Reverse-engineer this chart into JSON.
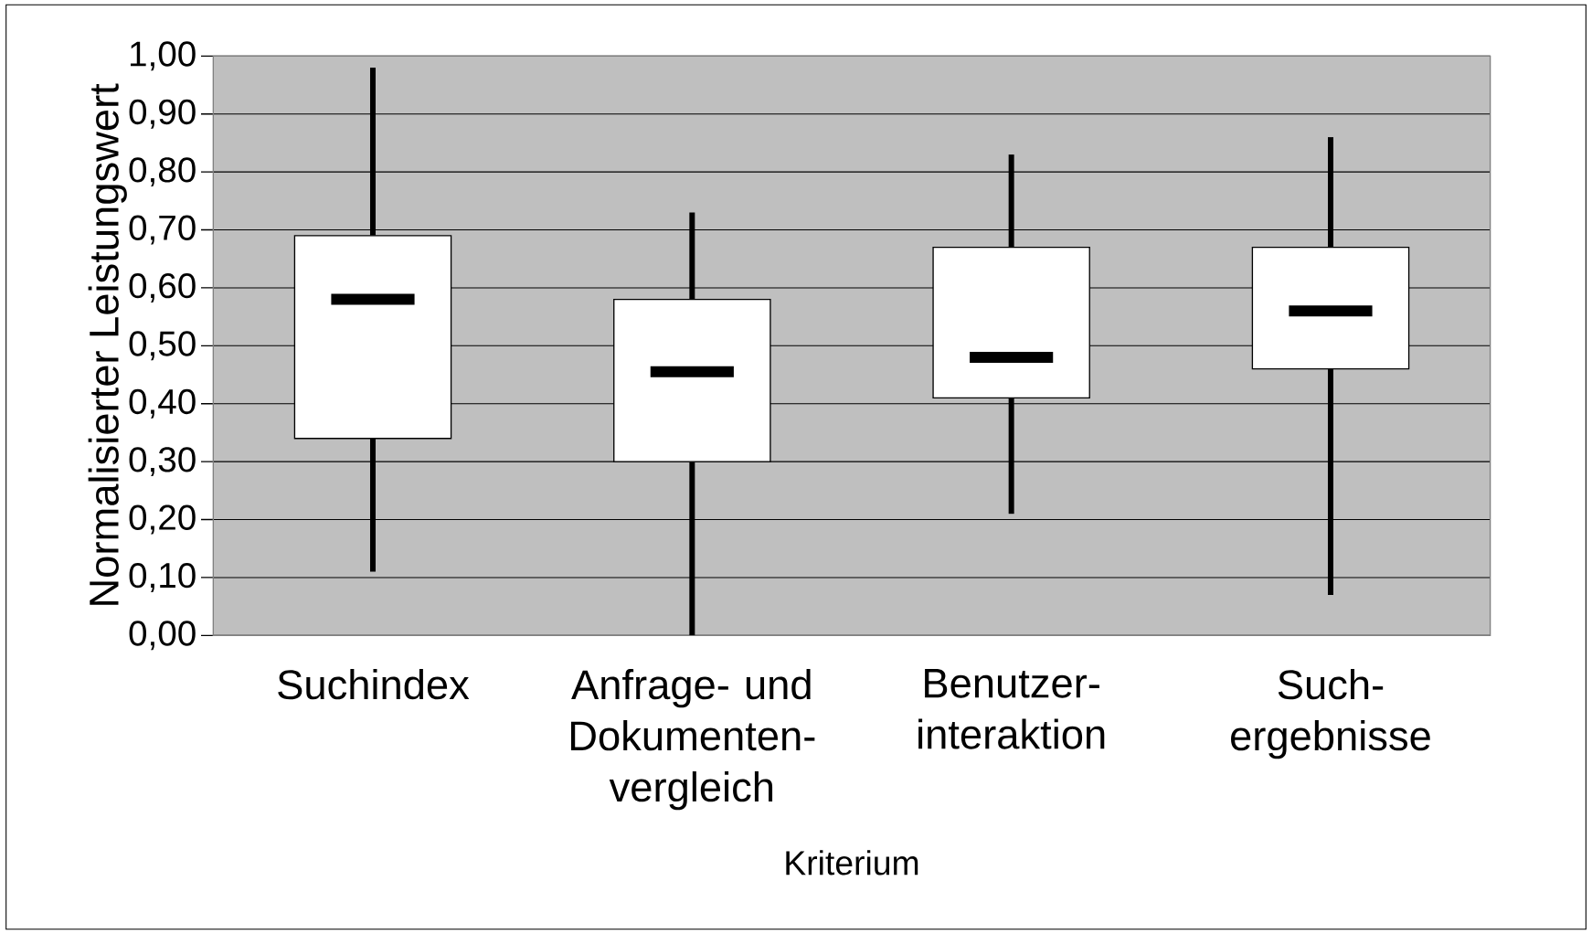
{
  "chart_data": {
    "type": "box",
    "xlabel": "Kriterium",
    "ylabel": "Normalisierter Leistungswert",
    "grid": "y",
    "categories": [
      "Suchindex",
      "Anfrage- und Dokumenten-vergleich",
      "Benutzer-interaktion",
      "Such-ergebnisse"
    ],
    "boxes": [
      {
        "low": 0.11,
        "q1": 0.34,
        "median": 0.58,
        "q3": 0.69,
        "high": 0.98
      },
      {
        "low": 0.0,
        "q1": 0.3,
        "median": 0.455,
        "q3": 0.58,
        "high": 0.73
      },
      {
        "low": 0.21,
        "q1": 0.41,
        "median": 0.48,
        "q3": 0.67,
        "high": 0.83
      },
      {
        "low": 0.07,
        "q1": 0.46,
        "median": 0.56,
        "q3": 0.67,
        "high": 0.86
      }
    ],
    "ylim": [
      0,
      1
    ],
    "yticks": [
      {
        "value": 0,
        "label": "0,00"
      },
      {
        "value": 0.1,
        "label": "0,10"
      },
      {
        "value": 0.2,
        "label": "0,20"
      },
      {
        "value": 0.3,
        "label": "0,30"
      },
      {
        "value": 0.4,
        "label": "0,40"
      },
      {
        "value": 0.5,
        "label": "0,50"
      },
      {
        "value": 0.6,
        "label": "0,60"
      },
      {
        "value": 0.7,
        "label": "0,70"
      },
      {
        "value": 0.8,
        "label": "0,80"
      },
      {
        "value": 0.9,
        "label": "0,90"
      },
      {
        "value": 1,
        "label": "1,00"
      }
    ]
  }
}
